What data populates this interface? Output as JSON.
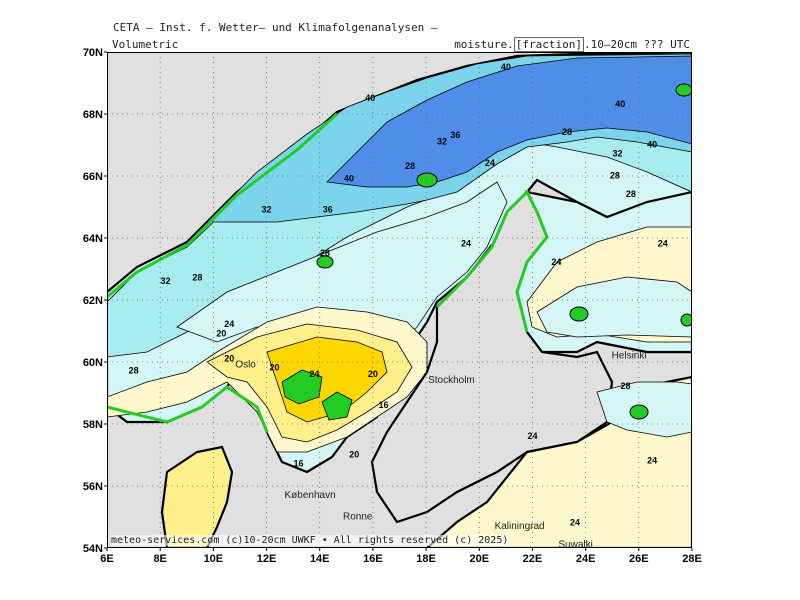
{
  "header": {
    "line1": "CETA — Inst. f. Wetter— und Klimafolgenanalysen —",
    "left": "Volumetric",
    "right_prefix": "moisture.",
    "right_boxed": "[fraction]",
    "right_suffix": ".10—20cm  ???  UTC"
  },
  "footer": "meteo-services.com (c)10-20cm UWKF • All rights reserved (c) 2025)",
  "axes": {
    "lat_labels": [
      "70N",
      "68N",
      "66N",
      "64N",
      "62N",
      "60N",
      "58N",
      "56N",
      "54N"
    ],
    "lon_labels": [
      "6E",
      "8E",
      "10E",
      "12E",
      "14E",
      "16E",
      "18E",
      "20E",
      "22E",
      "24E",
      "26E",
      "28E"
    ]
  },
  "colors": {
    "background": "#e0e0e0",
    "level_16": "#ffd700",
    "level_20": "#fff08c",
    "level_24": "#fff8cc",
    "level_28": "#d4f6f6",
    "level_32": "#a8ecf0",
    "level_36": "#7cd4ec",
    "level_40": "#4e8ee8",
    "wet": "#22cc22"
  },
  "contour_labels": [
    {
      "text": "40",
      "lon": 21.0,
      "lat": 69.5
    },
    {
      "text": "40",
      "lon": 15.9,
      "lat": 68.5
    },
    {
      "text": "40",
      "lon": 25.3,
      "lat": 68.3
    },
    {
      "text": "36",
      "lon": 19.1,
      "lat": 67.3
    },
    {
      "text": "32",
      "lon": 18.6,
      "lat": 67.1
    },
    {
      "text": "28",
      "lon": 23.3,
      "lat": 67.4
    },
    {
      "text": "32",
      "lon": 25.2,
      "lat": 66.7
    },
    {
      "text": "40",
      "lon": 26.5,
      "lat": 67.0
    },
    {
      "text": "28",
      "lon": 17.4,
      "lat": 66.3
    },
    {
      "text": "24",
      "lon": 20.4,
      "lat": 66.4
    },
    {
      "text": "40",
      "lon": 15.1,
      "lat": 65.9
    },
    {
      "text": "28",
      "lon": 25.1,
      "lat": 66.0
    },
    {
      "text": "36",
      "lon": 14.3,
      "lat": 64.9
    },
    {
      "text": "28",
      "lon": 25.7,
      "lat": 65.4
    },
    {
      "text": "32",
      "lon": 12.0,
      "lat": 64.9
    },
    {
      "text": "24",
      "lon": 19.5,
      "lat": 63.8
    },
    {
      "text": "24",
      "lon": 26.9,
      "lat": 63.8
    },
    {
      "text": "28",
      "lon": 14.2,
      "lat": 63.5
    },
    {
      "text": "24",
      "lon": 22.9,
      "lat": 63.2
    },
    {
      "text": "32",
      "lon": 8.2,
      "lat": 62.6
    },
    {
      "text": "28",
      "lon": 9.4,
      "lat": 62.7
    },
    {
      "text": "24",
      "lon": 10.6,
      "lat": 61.2
    },
    {
      "text": "20",
      "lon": 10.3,
      "lat": 60.9
    },
    {
      "text": "20",
      "lon": 10.6,
      "lat": 60.1
    },
    {
      "text": "20",
      "lon": 12.3,
      "lat": 59.8
    },
    {
      "text": "28",
      "lon": 7.0,
      "lat": 59.7
    },
    {
      "text": "24",
      "lon": 13.8,
      "lat": 59.6
    },
    {
      "text": "20",
      "lon": 16.0,
      "lat": 59.6
    },
    {
      "text": "28",
      "lon": 25.5,
      "lat": 59.2
    },
    {
      "text": "16",
      "lon": 16.4,
      "lat": 58.6
    },
    {
      "text": "24",
      "lon": 22.0,
      "lat": 57.6
    },
    {
      "text": "20",
      "lon": 15.3,
      "lat": 57.0
    },
    {
      "text": "16",
      "lon": 13.2,
      "lat": 56.7
    },
    {
      "text": "24",
      "lon": 26.5,
      "lat": 56.8
    },
    {
      "text": "24",
      "lon": 23.6,
      "lat": 54.8
    }
  ],
  "cities": [
    {
      "name": "Oslo",
      "lon": 10.75,
      "lat": 59.9
    },
    {
      "name": "Stockholm",
      "lon": 18.0,
      "lat": 59.4
    },
    {
      "name": "Helsinki",
      "lon": 24.9,
      "lat": 60.2
    },
    {
      "name": "København",
      "lon": 12.6,
      "lat": 55.7
    },
    {
      "name": "Ronne",
      "lon": 14.8,
      "lat": 55.0
    },
    {
      "name": "Kaliningrad",
      "lon": 20.5,
      "lat": 54.7
    },
    {
      "name": "Suwalki",
      "lon": 22.9,
      "lat": 54.1
    }
  ]
}
